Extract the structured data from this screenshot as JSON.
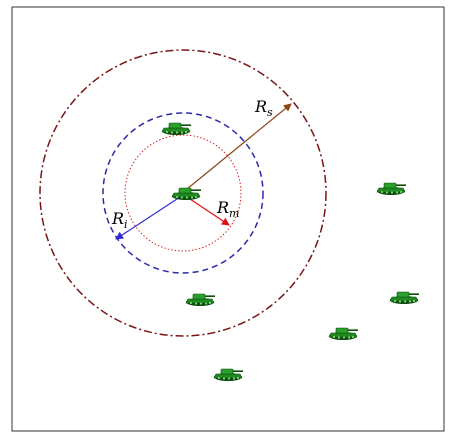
{
  "labels": {
    "rs_main": "R",
    "rs_sub": "s",
    "rm_main": "R",
    "rm_sub": "m",
    "ri_main": "R",
    "ri_sub": "i"
  },
  "colors": {
    "border": "#333333",
    "sensing_circle": "#7a1414",
    "interaction_circle": "#2a2aa8",
    "min_circle": "#e02020",
    "rs_arrow": "#8b4513",
    "ri_arrow": "#2a2ad0",
    "rm_arrow": "#e01010",
    "tank_body": "#1f8a1f",
    "tank_dark": "#0d4d0d"
  },
  "icons": {
    "unit": "tank-icon"
  },
  "units": [
    {
      "name": "center"
    },
    {
      "name": "upper"
    },
    {
      "name": "right-upper"
    },
    {
      "name": "left-lower"
    },
    {
      "name": "right-lower"
    },
    {
      "name": "far-right"
    },
    {
      "name": "bottom"
    }
  ]
}
